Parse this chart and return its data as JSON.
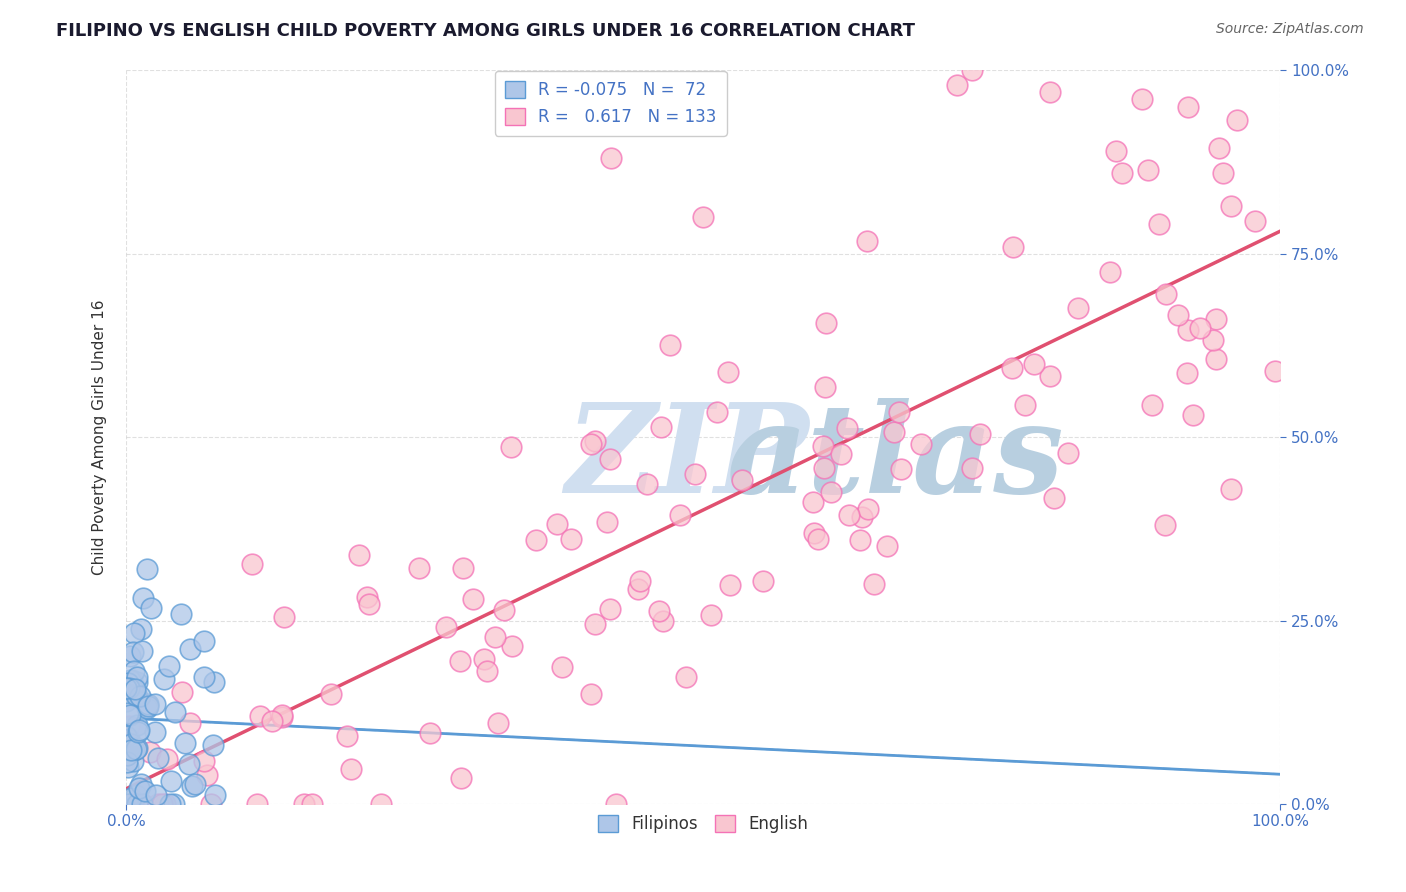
{
  "title": "FILIPINO VS ENGLISH CHILD POVERTY AMONG GIRLS UNDER 16 CORRELATION CHART",
  "source": "Source: ZipAtlas.com",
  "ylabel": "Child Poverty Among Girls Under 16",
  "legend_filipinos": "Filipinos",
  "legend_english": "English",
  "r_filipinos": -0.075,
  "n_filipinos": 72,
  "r_english": 0.617,
  "n_english": 133,
  "color_filipinos_fill": "#aec6e8",
  "color_filipinos_edge": "#5b9bd5",
  "color_english_fill": "#f9c6d0",
  "color_english_edge": "#f472b6",
  "trendline_filipinos_solid_color": "#5b9bd5",
  "trendline_filipinos_dashed_color": "#aec6e8",
  "trendline_english_color": "#e05070",
  "watermark_zip": "ZIP",
  "watermark_atlas": "atlas",
  "watermark_color_zip": "#c8d8e8",
  "watermark_color_atlas": "#b8c8d8",
  "background_color": "#ffffff",
  "grid_color": "#cccccc",
  "tick_color": "#4472c4",
  "title_fontsize": 13,
  "source_fontsize": 10,
  "axis_label_fontsize": 11,
  "legend_fontsize": 12,
  "ytick_labels": [
    "0.0%",
    "25.0%",
    "50.0%",
    "75.0%",
    "100.0%"
  ],
  "ytick_vals": [
    0,
    25,
    50,
    75,
    100
  ],
  "xtick_left_label": "0.0%",
  "xtick_right_label": "100.0%",
  "xlim": [
    0,
    100
  ],
  "ylim": [
    0,
    100
  ]
}
